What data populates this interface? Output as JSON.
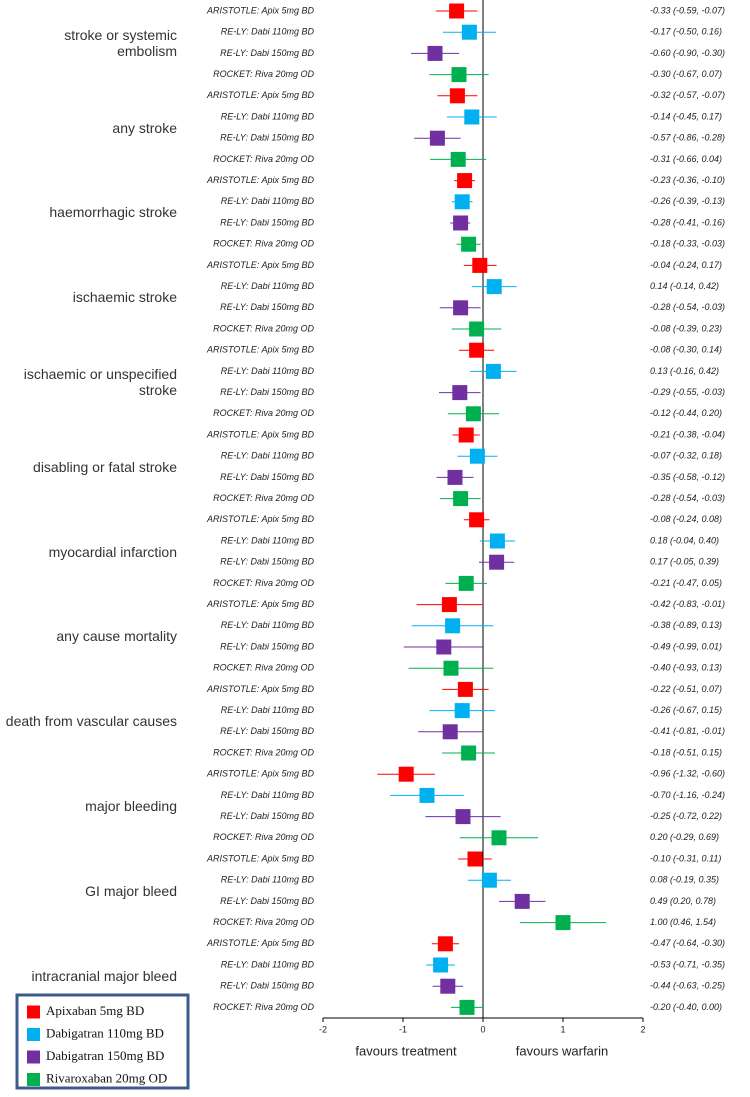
{
  "chart_data": {
    "type": "forest",
    "categories": [
      "stroke or systemic embolism",
      "any stroke",
      "haemorrhagic stroke",
      "ischaemic stroke",
      "ischaemic or unspecified stroke",
      "disabling or fatal stroke",
      "myocardial infarction",
      "any cause mortality",
      "death from vascular causes",
      "major bleeding",
      "GI major bleed",
      "intracranial major bleed"
    ],
    "series": [
      {
        "name": "Apixaban 5mg BD",
        "label": "ARISTOTLE: Apix 5mg BD",
        "color": "#ff0000",
        "values": [
          -0.33,
          -0.32,
          -0.23,
          -0.04,
          -0.08,
          -0.21,
          -0.08,
          -0.42,
          -0.22,
          -0.96,
          -0.1,
          -0.47
        ],
        "lower": [
          -0.59,
          -0.57,
          -0.36,
          -0.24,
          -0.3,
          -0.38,
          -0.24,
          -0.83,
          -0.51,
          -1.32,
          -0.31,
          -0.64
        ],
        "upper": [
          -0.07,
          -0.07,
          -0.1,
          0.17,
          0.14,
          -0.04,
          0.08,
          -0.01,
          0.07,
          -0.6,
          0.11,
          -0.3
        ],
        "value_labels": [
          "-0.33 (-0.59, -0.07)",
          "-0.32 (-0.57, -0.07)",
          "-0.23 (-0.36, -0.10)",
          "-0.04 (-0.24, 0.17)",
          "-0.08 (-0.30, 0.14)",
          "-0.21 (-0.38, -0.04)",
          "-0.08 (-0.24, 0.08)",
          "-0.42 (-0.83, -0.01)",
          "-0.22 (-0.51, 0.07)",
          "-0.96 (-1.32, -0.60)",
          "-0.10 (-0.31, 0.11)",
          "-0.47 (-0.64, -0.30)"
        ]
      },
      {
        "name": "Dabigatran 110mg BD",
        "label": "RE-LY: Dabi 110mg BD",
        "color": "#00b0f0",
        "values": [
          -0.17,
          -0.14,
          -0.26,
          0.14,
          0.13,
          -0.07,
          0.18,
          -0.38,
          -0.26,
          -0.7,
          0.08,
          -0.53
        ],
        "lower": [
          -0.5,
          -0.45,
          -0.39,
          -0.14,
          -0.16,
          -0.32,
          -0.04,
          -0.89,
          -0.67,
          -1.16,
          -0.19,
          -0.71
        ],
        "upper": [
          0.16,
          0.17,
          -0.13,
          0.42,
          0.42,
          0.18,
          0.4,
          0.13,
          0.15,
          -0.24,
          0.35,
          -0.35
        ],
        "value_labels": [
          "-0.17 (-0.50, 0.16)",
          "-0.14 (-0.45, 0.17)",
          "-0.26 (-0.39, -0.13)",
          "0.14 (-0.14, 0.42)",
          "0.13 (-0.16, 0.42)",
          "-0.07 (-0.32, 0.18)",
          "0.18 (-0.04, 0.40)",
          "-0.38 (-0.89, 0.13)",
          "-0.26 (-0.67, 0.15)",
          "-0.70 (-1.16, -0.24)",
          "0.08 (-0.19, 0.35)",
          "-0.53 (-0.71, -0.35)"
        ]
      },
      {
        "name": "Dabigatran 150mg BD",
        "label": "RE-LY: Dabi 150mg BD",
        "color": "#7030a0",
        "values": [
          -0.6,
          -0.57,
          -0.28,
          -0.28,
          -0.29,
          -0.35,
          0.17,
          -0.49,
          -0.41,
          -0.25,
          0.49,
          -0.44
        ],
        "lower": [
          -0.9,
          -0.86,
          -0.41,
          -0.54,
          -0.55,
          -0.58,
          -0.05,
          -0.99,
          -0.81,
          -0.72,
          0.2,
          -0.63
        ],
        "upper": [
          -0.3,
          -0.28,
          -0.16,
          -0.03,
          -0.03,
          -0.12,
          0.39,
          0.01,
          -0.01,
          0.22,
          0.78,
          -0.25
        ],
        "value_labels": [
          "-0.60 (-0.90, -0.30)",
          "-0.57 (-0.86, -0.28)",
          "-0.28 (-0.41, -0.16)",
          "-0.28 (-0.54, -0.03)",
          "-0.29 (-0.55, -0.03)",
          "-0.35 (-0.58, -0.12)",
          "0.17 (-0.05, 0.39)",
          "-0.49 (-0.99, 0.01)",
          "-0.41 (-0.81, -0.01)",
          "-0.25 (-0.72, 0.22)",
          "0.49 (0.20, 0.78)",
          "-0.44 (-0.63, -0.25)"
        ]
      },
      {
        "name": "Rivaroxaban 20mg OD",
        "label": "ROCKET: Riva 20mg OD",
        "color": "#00b050",
        "values": [
          -0.3,
          -0.31,
          -0.18,
          -0.08,
          -0.12,
          -0.28,
          -0.21,
          -0.4,
          -0.18,
          0.2,
          1.0,
          -0.2
        ],
        "lower": [
          -0.67,
          -0.66,
          -0.33,
          -0.39,
          -0.44,
          -0.54,
          -0.47,
          -0.93,
          -0.51,
          -0.29,
          0.46,
          -0.4
        ],
        "upper": [
          0.07,
          0.04,
          -0.03,
          0.23,
          0.2,
          -0.03,
          0.05,
          0.13,
          0.15,
          0.69,
          1.54,
          0.0
        ],
        "value_labels": [
          "-0.30 (-0.67, 0.07)",
          "-0.31 (-0.66, 0.04)",
          "-0.18 (-0.33, -0.03)",
          "-0.08 (-0.39, 0.23)",
          "-0.12 (-0.44, 0.20)",
          "-0.28 (-0.54, -0.03)",
          "-0.21 (-0.47, 0.05)",
          "-0.40 (-0.93, 0.13)",
          "-0.18 (-0.51, 0.15)",
          "0.20 (-0.29, 0.69)",
          "1.00 (0.46, 1.54)",
          "-0.20 (-0.40, 0.00)"
        ]
      }
    ],
    "xlim": [
      -2,
      2
    ],
    "xticks": [
      -2,
      -1,
      0,
      1,
      2
    ],
    "x_label_left": "favours treatment",
    "x_label_right": "favours warfarin",
    "legend": "bottom-left"
  }
}
